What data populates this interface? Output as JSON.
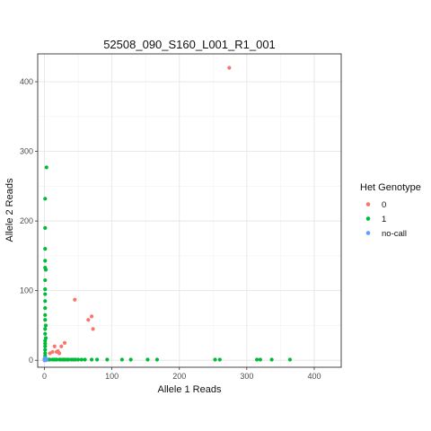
{
  "chart_data": {
    "type": "scatter",
    "title": "52508_090_S160_L001_R1_001",
    "xlabel": "Allele 1 Reads",
    "ylabel": "Allele 2 Reads",
    "xlim": [
      -10,
      440
    ],
    "ylim": [
      -10,
      440
    ],
    "x_ticks": [
      0,
      100,
      200,
      300,
      400
    ],
    "y_ticks": [
      0,
      100,
      200,
      300,
      400
    ],
    "grid": true,
    "legend": {
      "title": "Het Genotype",
      "position": "right"
    },
    "series": [
      {
        "name": "0",
        "color": "#F8766D",
        "points": [
          [
            274,
            420
          ],
          [
            45,
            87
          ],
          [
            65,
            58
          ],
          [
            70,
            63
          ],
          [
            72,
            45
          ],
          [
            12,
            12
          ],
          [
            18,
            12
          ],
          [
            15,
            20
          ],
          [
            25,
            20
          ],
          [
            30,
            25
          ],
          [
            20,
            13
          ],
          [
            8,
            10
          ],
          [
            22,
            10
          ]
        ]
      },
      {
        "name": "1",
        "color": "#00BA38",
        "points": [
          [
            3,
            277
          ],
          [
            1,
            232
          ],
          [
            1,
            190
          ],
          [
            1,
            160
          ],
          [
            1,
            143
          ],
          [
            1,
            133
          ],
          [
            2,
            130
          ],
          [
            1,
            115
          ],
          [
            1,
            102
          ],
          [
            1,
            95
          ],
          [
            1,
            85
          ],
          [
            1,
            75
          ],
          [
            1,
            65
          ],
          [
            1,
            58
          ],
          [
            2,
            50
          ],
          [
            1,
            45
          ],
          [
            1,
            38
          ],
          [
            2,
            32
          ],
          [
            1,
            28
          ],
          [
            1,
            24
          ],
          [
            1,
            20
          ],
          [
            1,
            15
          ],
          [
            1,
            10
          ],
          [
            1,
            6
          ],
          [
            1,
            3
          ],
          [
            2,
            1
          ],
          [
            5,
            1
          ],
          [
            8,
            1
          ],
          [
            12,
            1
          ],
          [
            15,
            1
          ],
          [
            18,
            1
          ],
          [
            22,
            1
          ],
          [
            25,
            1
          ],
          [
            28,
            1
          ],
          [
            30,
            1
          ],
          [
            33,
            1
          ],
          [
            36,
            1
          ],
          [
            40,
            1
          ],
          [
            43,
            1
          ],
          [
            46,
            1
          ],
          [
            50,
            1
          ],
          [
            55,
            1
          ],
          [
            60,
            1
          ],
          [
            70,
            1
          ],
          [
            78,
            1
          ],
          [
            93,
            1
          ],
          [
            115,
            1
          ],
          [
            128,
            1
          ],
          [
            153,
            1
          ],
          [
            167,
            1
          ],
          [
            253,
            1
          ],
          [
            260,
            1
          ],
          [
            315,
            1
          ],
          [
            320,
            1
          ],
          [
            337,
            1
          ],
          [
            364,
            1
          ]
        ]
      },
      {
        "name": "no-call",
        "color": "#619CFF",
        "points": [
          [
            0,
            0
          ],
          [
            1,
            1
          ],
          [
            2,
            0
          ],
          [
            0,
            2
          ],
          [
            3,
            1
          ],
          [
            1,
            3
          ],
          [
            2,
            2
          ]
        ]
      }
    ]
  }
}
